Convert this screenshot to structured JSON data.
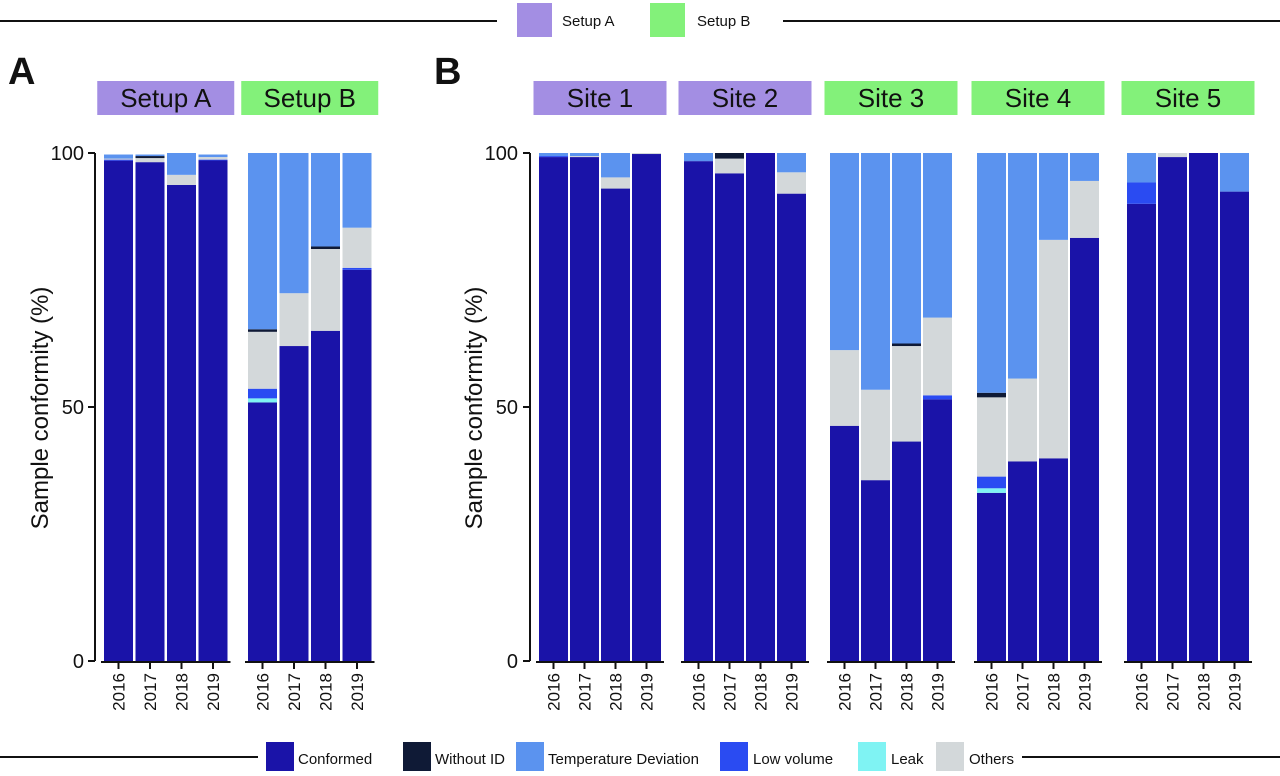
{
  "legend_top": {
    "items": [
      {
        "label": "Setup A",
        "color": "#a38ee3"
      },
      {
        "label": "Setup B",
        "color": "#83f17a"
      }
    ]
  },
  "legend_bottom": {
    "items": [
      {
        "key": "conformed",
        "label": "Conformed",
        "color": "#1a13a8"
      },
      {
        "key": "without_id",
        "label": "Without ID",
        "color": "#0f1a36"
      },
      {
        "key": "temperature_deviation",
        "label": "Temperature Deviation",
        "color": "#5b93ef"
      },
      {
        "key": "low_volume",
        "label": "Low volume",
        "color": "#2a4bf2"
      },
      {
        "key": "leak",
        "label": "Leak",
        "color": "#7ff3f3"
      },
      {
        "key": "others",
        "label": "Others",
        "color": "#d3d8da"
      }
    ]
  },
  "chart_data": [
    {
      "panel": "A",
      "type": "bar",
      "stacked": true,
      "ylabel": "Sample conformity (%)",
      "ylim": [
        0,
        100
      ],
      "yticks": [
        0,
        50,
        100
      ],
      "categories": [
        "2016",
        "2017",
        "2018",
        "2019"
      ],
      "groups": [
        {
          "label": "Setup A",
          "color": "#a38ee3",
          "bars": [
            {
              "conformed": 98.5,
              "without_id": 0,
              "temperature_deviation": 0.8,
              "low_volume": 0.2,
              "leak": 0,
              "others": 0.2
            },
            {
              "conformed": 98.2,
              "without_id": 0.4,
              "temperature_deviation": 0.3,
              "low_volume": 0,
              "leak": 0,
              "others": 0.8
            },
            {
              "conformed": 93.7,
              "without_id": 0,
              "temperature_deviation": 4.3,
              "low_volume": 0,
              "leak": 0,
              "others": 2.0
            },
            {
              "conformed": 98.6,
              "without_id": 0,
              "temperature_deviation": 0.5,
              "low_volume": 0.1,
              "leak": 0,
              "others": 0.5
            }
          ]
        },
        {
          "label": "Setup B",
          "color": "#83f17a",
          "bars": [
            {
              "conformed": 50.9,
              "without_id": 0.5,
              "temperature_deviation": 34.7,
              "low_volume": 1.9,
              "leak": 0.8,
              "others": 11.2
            },
            {
              "conformed": 62.0,
              "without_id": 0,
              "temperature_deviation": 27.6,
              "low_volume": 0,
              "leak": 0,
              "others": 10.4
            },
            {
              "conformed": 65.0,
              "without_id": 0.5,
              "temperature_deviation": 18.4,
              "low_volume": 0,
              "leak": 0,
              "others": 16.1
            },
            {
              "conformed": 77.0,
              "without_id": 0,
              "temperature_deviation": 14.7,
              "low_volume": 0.4,
              "leak": 0,
              "others": 7.9
            }
          ]
        }
      ]
    },
    {
      "panel": "B",
      "type": "bar",
      "stacked": true,
      "ylabel": "Sample conformity (%)",
      "ylim": [
        0,
        100
      ],
      "yticks": [
        0,
        50,
        100
      ],
      "categories": [
        "2016",
        "2017",
        "2018",
        "2019"
      ],
      "groups": [
        {
          "label": "Site 1",
          "color": "#a38ee3",
          "bars": [
            {
              "conformed": 99.2,
              "without_id": 0,
              "temperature_deviation": 0.6,
              "low_volume": 0.2,
              "leak": 0,
              "others": 0
            },
            {
              "conformed": 99.2,
              "without_id": 0,
              "temperature_deviation": 0.6,
              "low_volume": 0,
              "leak": 0,
              "others": 0.2
            },
            {
              "conformed": 93.0,
              "without_id": 0,
              "temperature_deviation": 4.8,
              "low_volume": 0,
              "leak": 0,
              "others": 2.2
            },
            {
              "conformed": 99.8,
              "without_id": 0,
              "temperature_deviation": 0,
              "low_volume": 0,
              "leak": 0,
              "others": 0.2
            }
          ]
        },
        {
          "label": "Site 2",
          "color": "#a38ee3",
          "bars": [
            {
              "conformed": 98.4,
              "without_id": 0,
              "temperature_deviation": 1.6,
              "low_volume": 0,
              "leak": 0,
              "others": 0
            },
            {
              "conformed": 96.0,
              "without_id": 1.1,
              "temperature_deviation": 0,
              "low_volume": 0,
              "leak": 0,
              "others": 2.9
            },
            {
              "conformed": 100,
              "without_id": 0,
              "temperature_deviation": 0,
              "low_volume": 0,
              "leak": 0,
              "others": 0
            },
            {
              "conformed": 92.0,
              "without_id": 0,
              "temperature_deviation": 3.8,
              "low_volume": 0,
              "leak": 0,
              "others": 4.2
            }
          ]
        },
        {
          "label": "Site 3",
          "color": "#83f17a",
          "bars": [
            {
              "conformed": 46.3,
              "without_id": 0,
              "temperature_deviation": 38.8,
              "low_volume": 0,
              "leak": 0,
              "others": 14.9
            },
            {
              "conformed": 35.6,
              "without_id": 0,
              "temperature_deviation": 46.6,
              "low_volume": 0,
              "leak": 0,
              "others": 17.8
            },
            {
              "conformed": 43.2,
              "without_id": 0.5,
              "temperature_deviation": 37.5,
              "low_volume": 0,
              "leak": 0,
              "others": 18.8
            },
            {
              "conformed": 51.5,
              "without_id": 0,
              "temperature_deviation": 32.4,
              "low_volume": 0.8,
              "leak": 0,
              "others": 15.3
            }
          ]
        },
        {
          "label": "Site 4",
          "color": "#83f17a",
          "bars": [
            {
              "conformed": 33.1,
              "without_id": 0.9,
              "temperature_deviation": 47.2,
              "low_volume": 2.3,
              "leak": 0.9,
              "others": 15.6
            },
            {
              "conformed": 39.3,
              "without_id": 0,
              "temperature_deviation": 44.4,
              "low_volume": 0,
              "leak": 0,
              "others": 16.3
            },
            {
              "conformed": 39.9,
              "without_id": 0,
              "temperature_deviation": 17.1,
              "low_volume": 0,
              "leak": 0,
              "others": 43.0
            },
            {
              "conformed": 83.3,
              "without_id": 0,
              "temperature_deviation": 5.5,
              "low_volume": 0,
              "leak": 0,
              "others": 11.2
            }
          ]
        },
        {
          "label": "Site 5",
          "color": "#83f17a",
          "bars": [
            {
              "conformed": 90.0,
              "without_id": 0,
              "temperature_deviation": 5.8,
              "low_volume": 4.2,
              "leak": 0,
              "others": 0
            },
            {
              "conformed": 99.2,
              "without_id": 0,
              "temperature_deviation": 0,
              "low_volume": 0,
              "leak": 0,
              "others": 0.8
            },
            {
              "conformed": 100,
              "without_id": 0,
              "temperature_deviation": 0,
              "low_volume": 0,
              "leak": 0,
              "others": 0
            },
            {
              "conformed": 92.4,
              "without_id": 0,
              "temperature_deviation": 7.6,
              "low_volume": 0,
              "leak": 0,
              "others": 0
            }
          ]
        }
      ]
    }
  ]
}
